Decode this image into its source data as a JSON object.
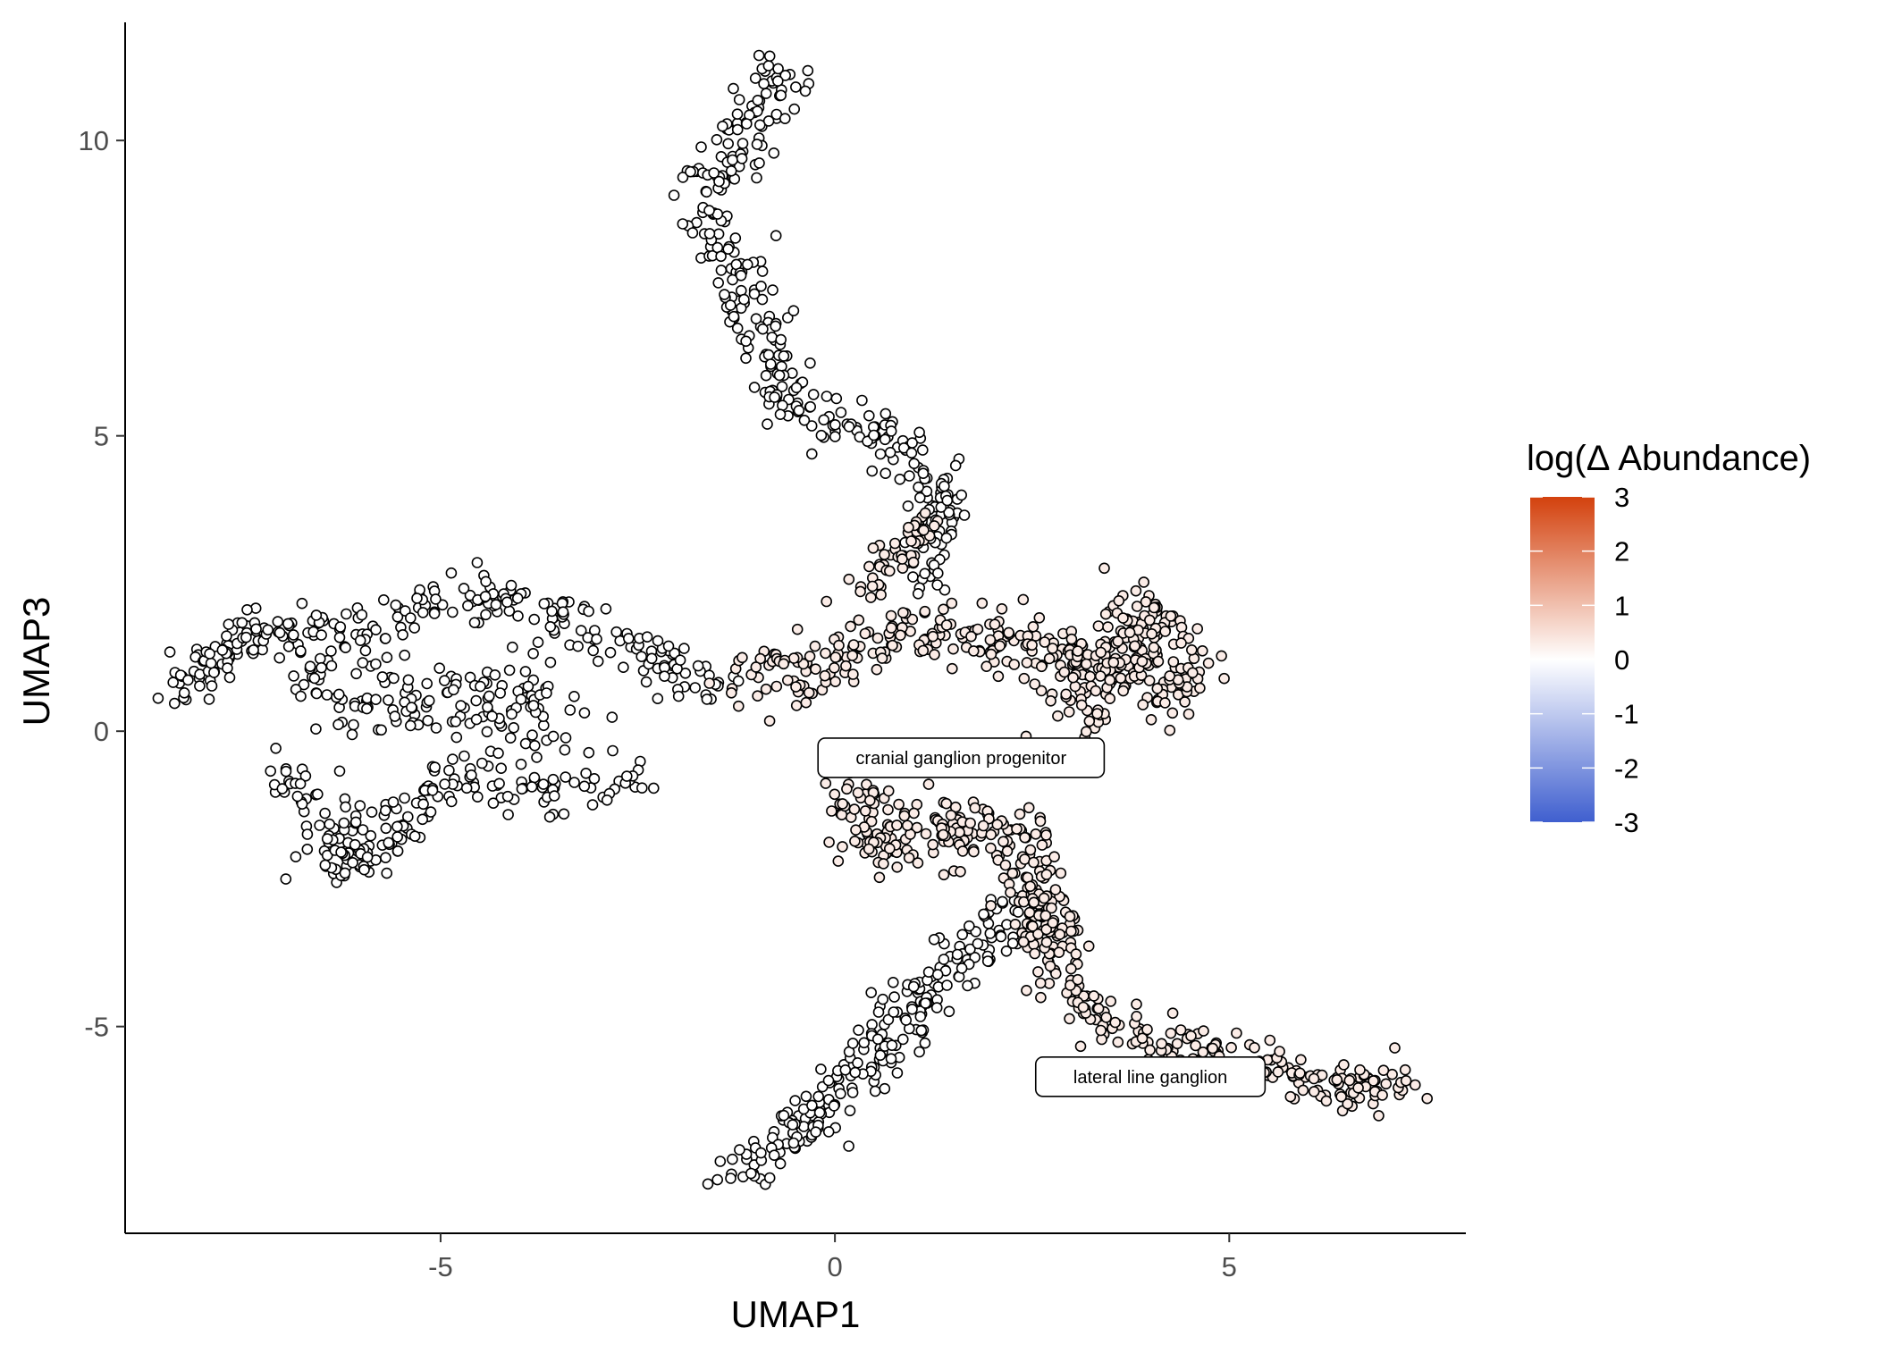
{
  "chart_data": {
    "type": "scatter",
    "title": "",
    "xlabel": "UMAP1",
    "ylabel": "UMAP3",
    "xlim": [
      -9.0,
      8.0
    ],
    "ylim": [
      -8.5,
      12.0
    ],
    "x_ticks": [
      -5,
      0,
      5
    ],
    "y_ticks": [
      -5,
      0,
      5,
      10
    ],
    "grid": false,
    "legend": {
      "title": "log(Δ Abundance)",
      "placement": "right",
      "type": "colorbar",
      "range": [
        -3,
        3
      ],
      "ticks": [
        3,
        2,
        1,
        0,
        -1,
        -2,
        -3
      ],
      "colors": {
        "low": "#3f5fcf",
        "mid": "#ffffff",
        "high": "#d3410d"
      }
    },
    "point_colors": {
      "neutral": "#ffffff",
      "elevated": "#fbe3d8",
      "outline": "#000000"
    },
    "elevated_value": 0.3,
    "annotations": [
      {
        "text": "cranial ganglion progenitor",
        "x": 1.6,
        "y": -0.45
      },
      {
        "text": "lateral line ganglion",
        "x": 4.0,
        "y": -5.85
      }
    ],
    "regions": [
      {
        "value": 0.0,
        "path": [
          [
            -0.7,
            11.2
          ],
          [
            -1.6,
            9.0
          ],
          [
            -1.2,
            7.5
          ],
          [
            -0.6,
            5.5
          ],
          [
            1.0,
            4.8
          ],
          [
            1.4,
            3.6
          ],
          [
            1.0,
            2.5
          ]
        ],
        "spread": 0.35,
        "count": 340
      },
      {
        "value": 0.0,
        "path": [
          [
            -8.4,
            0.7
          ],
          [
            -7.2,
            1.8
          ],
          [
            -6.0,
            1.6
          ],
          [
            -4.5,
            2.4
          ],
          [
            -3.2,
            1.8
          ],
          [
            -2.0,
            1.0
          ],
          [
            -1.3,
            0.8
          ]
        ],
        "spread": 0.35,
        "count": 260
      },
      {
        "value": 0.0,
        "path": [
          [
            -7.0,
            -0.6
          ],
          [
            -6.3,
            -1.8
          ],
          [
            -6.2,
            -2.5
          ],
          [
            -5.0,
            -0.8
          ],
          [
            -3.5,
            -1.0
          ],
          [
            -2.5,
            -0.8
          ]
        ],
        "spread": 0.35,
        "count": 200
      },
      {
        "value": 0.0,
        "path": [
          [
            -6.5,
            1.2
          ],
          [
            -5.8,
            0.3
          ],
          [
            -4.5,
            0.5
          ],
          [
            -4.0,
            0.8
          ],
          [
            -3.5,
            -0.2
          ]
        ],
        "spread": 0.55,
        "count": 150
      },
      {
        "value": 0.0,
        "path": [
          [
            -1.2,
            -7.6
          ],
          [
            -0.5,
            -6.8
          ],
          [
            0.5,
            -5.5
          ],
          [
            1.5,
            -4.0
          ],
          [
            2.3,
            -3.0
          ]
        ],
        "spread": 0.35,
        "count": 240
      },
      {
        "value": 0.3,
        "path": [
          [
            -1.3,
            0.8
          ],
          [
            0.0,
            1.2
          ],
          [
            1.0,
            1.8
          ],
          [
            2.5,
            1.4
          ],
          [
            3.5,
            1.2
          ],
          [
            4.4,
            0.6
          ],
          [
            4.0,
            2.2
          ],
          [
            3.0,
            0.2
          ]
        ],
        "spread": 0.45,
        "count": 420
      },
      {
        "value": 0.3,
        "path": [
          [
            0.3,
            2.3
          ],
          [
            1.0,
            3.3
          ],
          [
            1.3,
            3.6
          ]
        ],
        "spread": 0.2,
        "count": 50
      },
      {
        "value": 0.3,
        "path": [
          [
            0.3,
            -0.8
          ],
          [
            0.5,
            -2.0
          ],
          [
            1.5,
            -1.5
          ],
          [
            2.3,
            -2.0
          ],
          [
            2.8,
            -3.5
          ]
        ],
        "spread": 0.45,
        "count": 230
      },
      {
        "value": 0.3,
        "path": [
          [
            2.5,
            -2.5
          ],
          [
            2.8,
            -4.0
          ],
          [
            3.5,
            -5.0
          ],
          [
            5.0,
            -5.5
          ],
          [
            6.5,
            -6.0
          ],
          [
            7.2,
            -6.1
          ]
        ],
        "spread": 0.35,
        "count": 260
      }
    ]
  }
}
